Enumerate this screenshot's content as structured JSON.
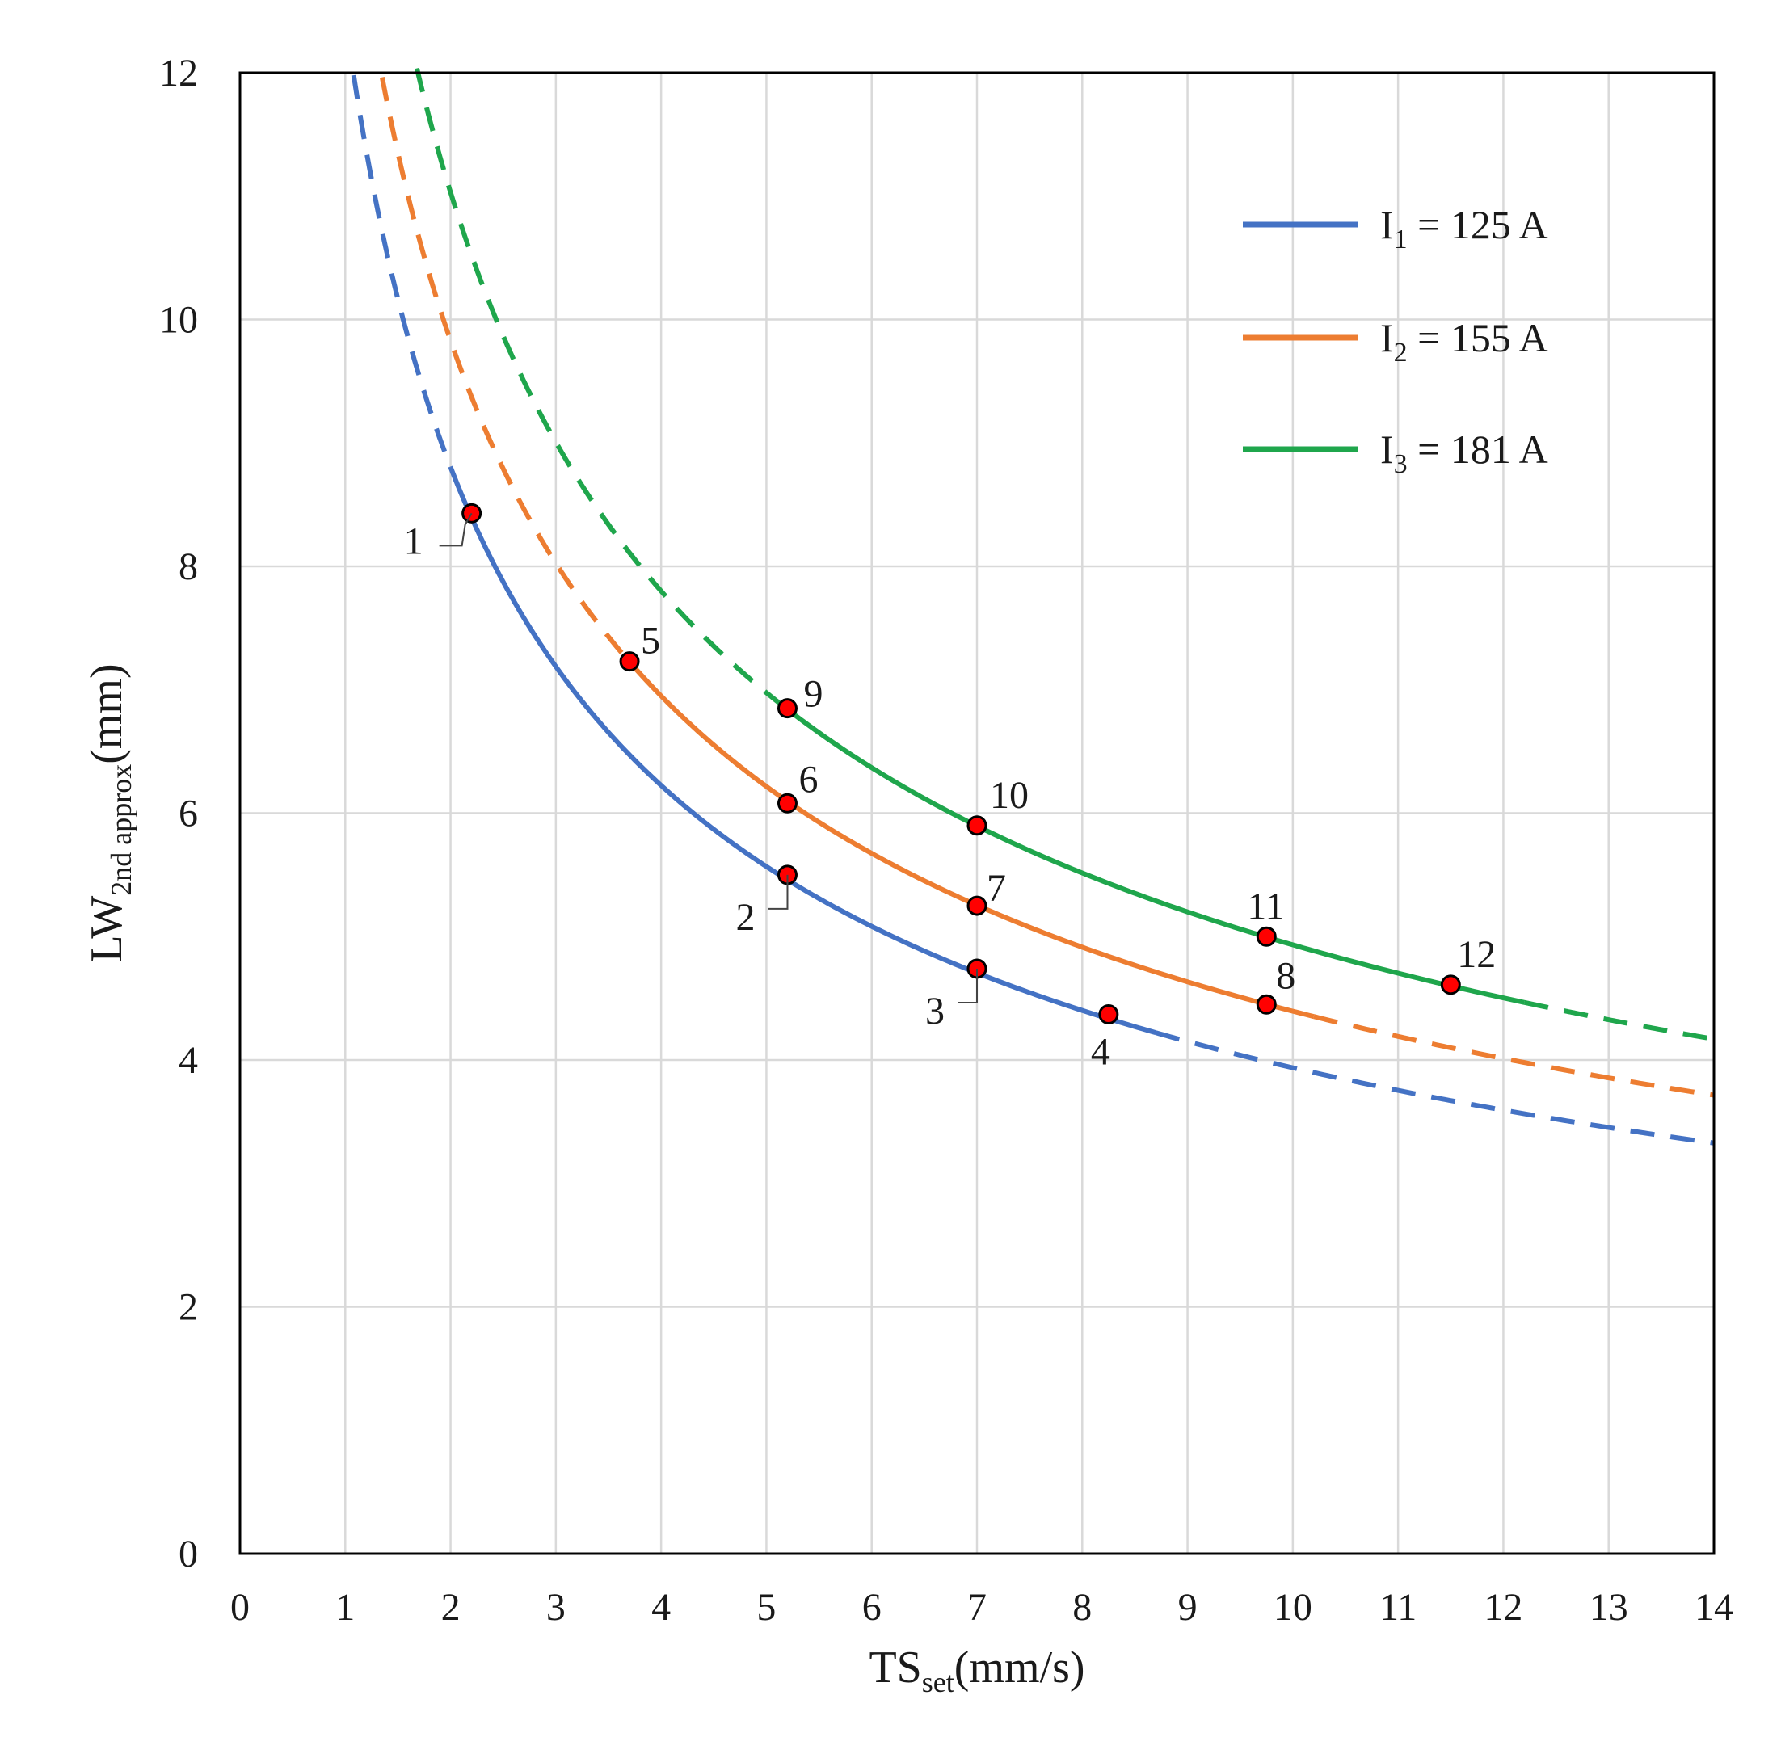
{
  "chart_data": {
    "type": "line",
    "xlabel": {
      "main": "TS",
      "sub": "set",
      "unit": "(mm/s)"
    },
    "ylabel": {
      "main": "LW",
      "sub": "2nd approx",
      "unit": "(mm)"
    },
    "xlim": [
      0,
      14
    ],
    "ylim": [
      0,
      12
    ],
    "x_ticks": [
      "0",
      "1",
      "2",
      "3",
      "4",
      "5",
      "6",
      "7",
      "8",
      "9",
      "10",
      "11",
      "12",
      "13",
      "14"
    ],
    "y_ticks": [
      "0",
      "2",
      "4",
      "6",
      "8",
      "10",
      "12"
    ],
    "grid": true,
    "legend_position": "top-right",
    "series": [
      {
        "name": "I1 = 125 A",
        "label_main": "I",
        "label_sub": "1",
        "label_rest": " = 125 A",
        "color": "#4472C4",
        "k": 12.45,
        "solid_range": [
          2.0,
          8.7
        ],
        "curve_range": [
          1.08,
          14.0
        ],
        "points": [
          {
            "label": "1",
            "x": 2.2,
            "y": 8.43
          },
          {
            "label": "2",
            "x": 5.2,
            "y": 5.5
          },
          {
            "label": "3",
            "x": 7.0,
            "y": 4.74
          },
          {
            "label": "4",
            "x": 8.25,
            "y": 4.37
          }
        ]
      },
      {
        "name": "I2 = 155 A",
        "label_main": "I",
        "label_sub": "2",
        "label_rest": " = 155 A",
        "color": "#ED7D31",
        "k": 13.9,
        "solid_range": [
          3.7,
          10.2
        ],
        "curve_range": [
          1.35,
          14.0
        ],
        "points": [
          {
            "label": "5",
            "x": 3.7,
            "y": 7.23
          },
          {
            "label": "6",
            "x": 5.2,
            "y": 6.08
          },
          {
            "label": "7",
            "x": 7.0,
            "y": 5.25
          },
          {
            "label": "8",
            "x": 9.75,
            "y": 4.45
          }
        ]
      },
      {
        "name": "I3 = 181 A",
        "label_main": "I",
        "label_sub": "3",
        "label_rest": " = 181 A",
        "color": "#1FA64C",
        "k": 15.6,
        "solid_range": [
          5.2,
          12.2
        ],
        "curve_range": [
          1.68,
          14.0
        ],
        "points": [
          {
            "label": "9",
            "x": 5.2,
            "y": 6.85
          },
          {
            "label": "10",
            "x": 7.0,
            "y": 5.9
          },
          {
            "label": "11",
            "x": 9.75,
            "y": 5.0
          },
          {
            "label": "12",
            "x": 11.5,
            "y": 4.61
          }
        ]
      }
    ]
  }
}
